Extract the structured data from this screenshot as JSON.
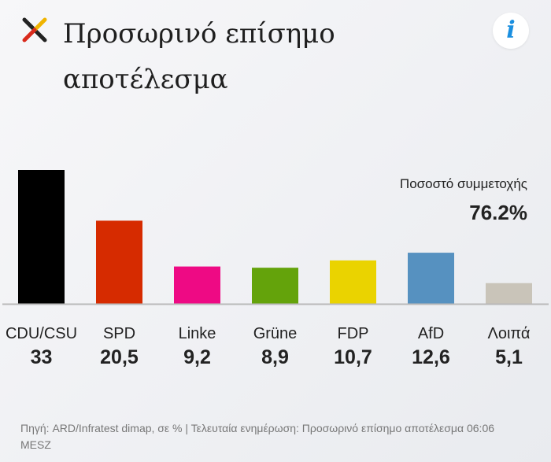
{
  "header": {
    "title": "Προσωρινό επίσημο αποτέλεσμα",
    "info_icon": "info-icon",
    "info_label": "i"
  },
  "turnout": {
    "label": "Ποσοστό συμμετοχής",
    "value": "76.2%"
  },
  "chart_data": {
    "type": "bar",
    "categories": [
      "CDU/CSU",
      "SPD",
      "Linke",
      "Grüne",
      "FDP",
      "AfD",
      "Λοιπά"
    ],
    "values": [
      33,
      20.5,
      9.2,
      8.9,
      10.7,
      12.6,
      5.1
    ],
    "value_labels": [
      "33",
      "20,5",
      "9,2",
      "8,9",
      "10,7",
      "12,6",
      "5,1"
    ],
    "colors": [
      "#000000",
      "#d62b00",
      "#ee0a84",
      "#64a30b",
      "#ead300",
      "#5691c0",
      "#c9c4b9"
    ],
    "ylim": [
      0,
      33
    ],
    "grid": false
  },
  "footer": {
    "source": "Πηγή: ARD/Infratest dimap, σε % | Τελευταία ενημέρωση: Προσωρινό επίσημο αποτέλεσμα 06:06 MESZ"
  }
}
